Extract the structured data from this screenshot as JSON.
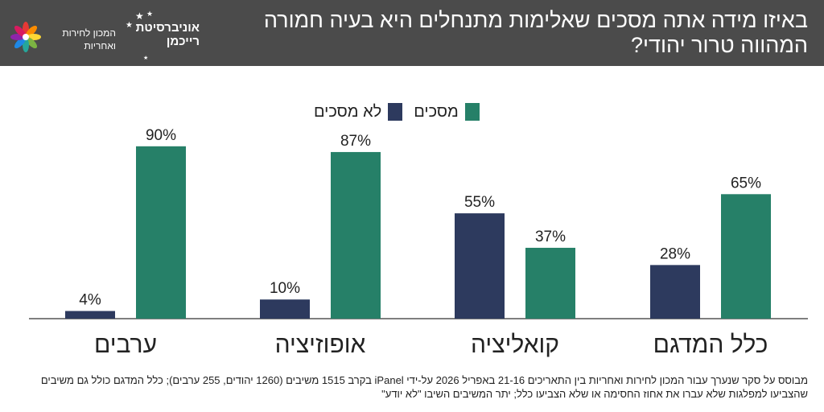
{
  "header": {
    "title": "באיזו מידה אתה מסכים שאלימות מתנחלים היא בעיה חמורה המהווה טרור יהודי?",
    "logo_institute": "המכון לחירות ואחריות",
    "logo_university": "אוניברסיטת רייכמן"
  },
  "colors": {
    "header_bg": "#4b4b4b",
    "disagree": "#2d3a5e",
    "agree": "#268068",
    "axis": "#555555"
  },
  "legend": [
    {
      "label": "מסכים",
      "color": "#268068"
    },
    {
      "label": "לא מסכים",
      "color": "#2d3a5e"
    }
  ],
  "chart_data": {
    "type": "bar",
    "title": "באיזו מידה אתה מסכים שאלימות מתנחלים היא בעיה חמורה המהווה טרור יהודי?",
    "categories": [
      "כלל המדגם",
      "קואליציה",
      "אופוזיציה",
      "ערבים"
    ],
    "category_order": "right-to-left",
    "series": [
      {
        "name": "לא מסכים",
        "values": [
          28,
          55,
          10,
          4
        ],
        "labels": [
          "28%",
          "55%",
          "10%",
          "4%"
        ],
        "color": "#2d3a5e"
      },
      {
        "name": "מסכים",
        "values": [
          65,
          37,
          87,
          90
        ],
        "labels": [
          "65%",
          "37%",
          "87%",
          "90%"
        ],
        "color": "#268068"
      }
    ],
    "ylim": [
      0,
      100
    ],
    "xlabel": "",
    "ylabel": "",
    "grid": false,
    "legend_position": "top-center"
  },
  "footnote": "מבוסס על סקר שנערך עבור המכון לחירות ואחריות בין התאריכים 21-16 באפריל 2026 על-ידי iPanel בקרב 1515 משיבים (1260 יהודים, 255 ערבים); כלל המדגם כולל גם משיבים שהצביעו למפלגות שלא עברו את אחוז החסימה או שלא הצביעו כלל; יתר המשיבים השיבו \"לא יודע\""
}
